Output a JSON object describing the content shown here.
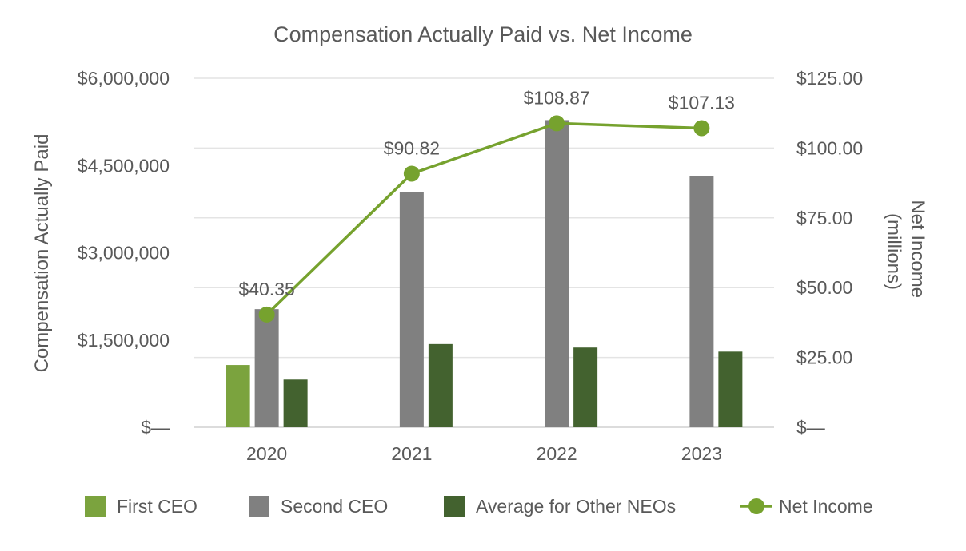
{
  "chart_data": {
    "type": "bar",
    "title": "Compensation Actually Paid vs. Net Income",
    "categories": [
      "2020",
      "2021",
      "2022",
      "2023"
    ],
    "y_left": {
      "label": "Compensation Actually Paid",
      "ylim": [
        0,
        6000000
      ],
      "ticks": [
        0,
        1500000,
        3000000,
        4500000,
        6000000
      ],
      "tick_labels": [
        "$—",
        "$1,500,000",
        "$3,000,000",
        "$4,500,000",
        "$6,000,000"
      ]
    },
    "y_right": {
      "label": "Net Income (millions)",
      "ylim": [
        0,
        125
      ],
      "ticks": [
        0,
        25,
        50,
        75,
        100,
        125
      ],
      "tick_labels": [
        "$—",
        "$25.00",
        "$50.00",
        "$75.00",
        "$100.00",
        "$125.00"
      ]
    },
    "series": [
      {
        "name": "First CEO",
        "kind": "bar",
        "axis": "left",
        "color": "#7ba33e",
        "values": [
          1070000,
          null,
          null,
          null
        ]
      },
      {
        "name": "Second CEO",
        "kind": "bar",
        "axis": "left",
        "color": "#808080",
        "values": [
          2030000,
          4050000,
          5280000,
          4320000
        ]
      },
      {
        "name": "Average for Other NEOs",
        "kind": "bar",
        "axis": "left",
        "color": "#43622f",
        "values": [
          820000,
          1430000,
          1370000,
          1300000
        ]
      },
      {
        "name": "Net Income",
        "kind": "line",
        "axis": "right",
        "color": "#76a22e",
        "values": [
          40.35,
          90.82,
          108.87,
          107.13
        ],
        "labels": [
          "$40.35",
          "$90.82",
          "$108.87",
          "$107.13"
        ]
      }
    ],
    "grid": true,
    "legend_position": "bottom"
  }
}
